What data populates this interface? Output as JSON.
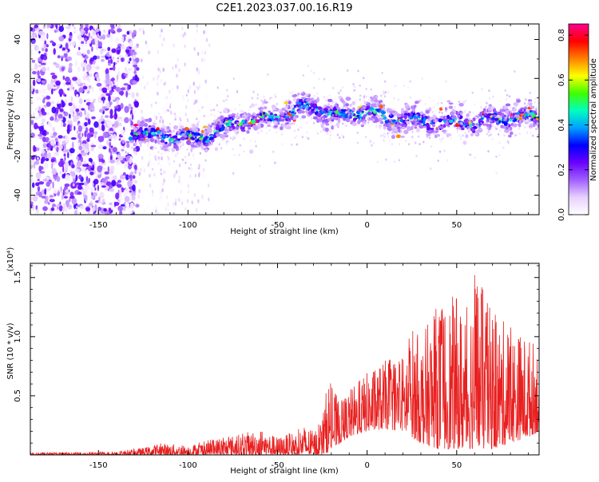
{
  "page": {
    "title": "C2E1.2023.037.00.16.R19"
  },
  "chart_data": [
    {
      "type": "heatmap",
      "xlabel": "Height of straight line (km)",
      "ylabel": "Frequency (Hz)",
      "xlim": [
        -188,
        96
      ],
      "ylim": [
        -50,
        48
      ],
      "x_ticks": [
        -150,
        -100,
        -50,
        0,
        50
      ],
      "x_tick_labels": [
        "-150",
        "-100",
        "-50",
        "0",
        "50"
      ],
      "y_ticks": [
        -40,
        -20,
        0,
        20,
        40
      ],
      "y_tick_labels": [
        "-40",
        "-20",
        "0",
        "20",
        "40"
      ],
      "colorbar": {
        "label": "Normalized spectral amplitude",
        "range": [
          0,
          0.85
        ],
        "ticks": [
          0.0,
          0.2,
          0.4,
          0.6,
          0.8
        ],
        "tick_labels": [
          "0.0",
          "0.2",
          "0.4",
          "0.6",
          "0.8"
        ],
        "colormap": [
          "#ffffff",
          "#e8d0ff",
          "#a060ff",
          "#6a00ff",
          "#0000ff",
          "#00a0ff",
          "#00ffc0",
          "#40ff00",
          "#ffff00",
          "#ff8000",
          "#ff0000",
          "#ff0090"
        ]
      },
      "ridge": {
        "x": [
          -128,
          -120,
          -110,
          -100,
          -90,
          -80,
          -70,
          -60,
          -50,
          -40,
          -35,
          -30,
          -20,
          -10,
          0,
          10,
          20,
          30,
          40,
          50,
          60,
          70,
          80,
          96
        ],
        "frequency": [
          -8,
          -9,
          -10,
          -11,
          -10,
          -5,
          -2,
          -1,
          0,
          3,
          6,
          5,
          1,
          2,
          3,
          0,
          -1,
          -2,
          -3,
          -2,
          -3,
          -1,
          0,
          0
        ]
      },
      "grid": false
    },
    {
      "type": "line",
      "xlabel": "Height of straight line (km)",
      "ylabel": "SNR (10 * v/v)",
      "y_multiplier": "(x10⁴)",
      "xlim": [
        -188,
        96
      ],
      "ylim": [
        0,
        1.62
      ],
      "x_ticks": [
        -150,
        -100,
        -50,
        0,
        50
      ],
      "x_tick_labels": [
        "-150",
        "-100",
        "-50",
        "0",
        "50"
      ],
      "y_ticks": [
        0.5,
        1.0,
        1.5
      ],
      "y_tick_labels": [
        "0.5",
        "1.0",
        "1.5"
      ],
      "series_color": "#e82020",
      "envelope": {
        "x": [
          -188,
          -160,
          -140,
          -125,
          -115,
          -100,
          -90,
          -80,
          -70,
          -60,
          -50,
          -40,
          -35,
          -30,
          -25,
          -22,
          -15,
          -10,
          0,
          10,
          20,
          25,
          30,
          40,
          50,
          55,
          60,
          70,
          80,
          90,
          96
        ],
        "low": [
          0.0,
          0.0,
          0.0,
          0.0,
          0.0,
          0.0,
          0.0,
          0.0,
          0.0,
          0.0,
          0.0,
          0.0,
          0.0,
          0.0,
          0.0,
          0.02,
          0.1,
          0.15,
          0.2,
          0.22,
          0.2,
          0.15,
          0.1,
          0.05,
          0.05,
          0.05,
          0.05,
          0.05,
          0.1,
          0.15,
          0.2
        ],
        "high": [
          0.02,
          0.02,
          0.03,
          0.06,
          0.1,
          0.08,
          0.12,
          0.15,
          0.18,
          0.22,
          0.15,
          0.2,
          0.25,
          0.2,
          0.3,
          0.65,
          0.45,
          0.55,
          0.7,
          0.8,
          0.85,
          1.1,
          1.0,
          1.3,
          1.35,
          1.2,
          1.6,
          1.2,
          1.1,
          1.0,
          0.95
        ]
      },
      "grid": false
    }
  ]
}
